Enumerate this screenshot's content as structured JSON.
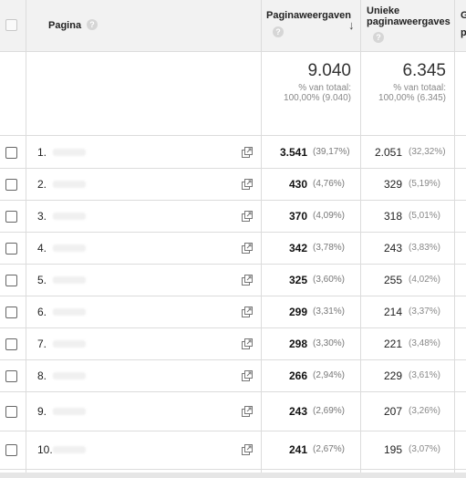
{
  "header": {
    "col_page": "Pagina",
    "col_views": "Paginaweergaven",
    "col_unique_line1": "Unieke",
    "col_unique_line2": "paginaweergaves",
    "col_next_line1": "G",
    "col_next_line2": "p",
    "help_glyph": "?",
    "sort_glyph": "↓"
  },
  "totals": {
    "views_total": "9.040",
    "views_pct_line1": "% van totaal:",
    "views_pct_line2": "100,00% (9.040)",
    "unique_total": "6.345",
    "unique_pct_line1": "% van totaal:",
    "unique_pct_line2": "100,00% (6.345)"
  },
  "rows": [
    {
      "idx": "1.",
      "views": "3.541",
      "views_pct": "(39,17%)",
      "unique": "2.051",
      "unique_pct": "(32,32%)"
    },
    {
      "idx": "2.",
      "views": "430",
      "views_pct": "(4,76%)",
      "unique": "329",
      "unique_pct": "(5,19%)"
    },
    {
      "idx": "3.",
      "views": "370",
      "views_pct": "(4,09%)",
      "unique": "318",
      "unique_pct": "(5,01%)"
    },
    {
      "idx": "4.",
      "views": "342",
      "views_pct": "(3,78%)",
      "unique": "243",
      "unique_pct": "(3,83%)"
    },
    {
      "idx": "5.",
      "views": "325",
      "views_pct": "(3,60%)",
      "unique": "255",
      "unique_pct": "(4,02%)"
    },
    {
      "idx": "6.",
      "views": "299",
      "views_pct": "(3,31%)",
      "unique": "214",
      "unique_pct": "(3,37%)"
    },
    {
      "idx": "7.",
      "views": "298",
      "views_pct": "(3,30%)",
      "unique": "221",
      "unique_pct": "(3,48%)"
    },
    {
      "idx": "8.",
      "views": "266",
      "views_pct": "(2,94%)",
      "unique": "229",
      "unique_pct": "(3,61%)"
    },
    {
      "idx": "9.",
      "views": "243",
      "views_pct": "(2,69%)",
      "unique": "207",
      "unique_pct": "(3,26%)"
    },
    {
      "idx": "10.",
      "views": "241",
      "views_pct": "(2,67%)",
      "unique": "195",
      "unique_pct": "(3,07%)"
    }
  ],
  "icons": {
    "row_link": "external-link-icon",
    "help": "help-icon",
    "sort": "sort-descending-icon"
  }
}
